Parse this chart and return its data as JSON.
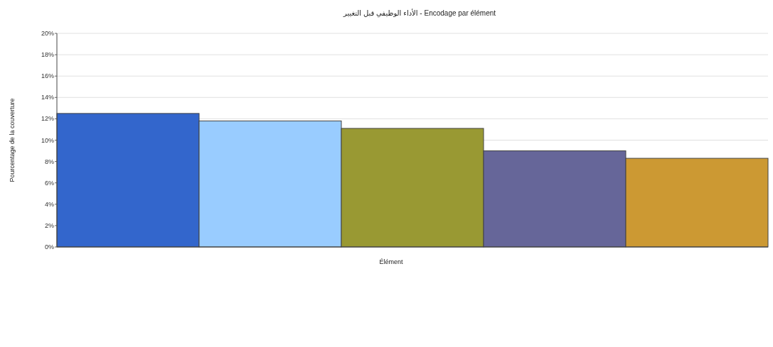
{
  "chart_data": {
    "type": "bar",
    "title": "الأداء الوظيفي قبل التغيير - Encodage par élément",
    "xlabel": "Élément",
    "ylabel": "Pourcentage de la couverture",
    "categories": [
      null,
      null,
      null,
      null,
      null
    ],
    "values": [
      12.5,
      11.8,
      11.1,
      9.0,
      8.3
    ],
    "colors": [
      "#3366cc",
      "#99ccff",
      "#999933",
      "#666699",
      "#cc9933"
    ],
    "ylim": [
      0,
      20
    ],
    "yticks": [
      {
        "value": 0,
        "label": "0%"
      },
      {
        "value": 2,
        "label": "2%"
      },
      {
        "value": 4,
        "label": "4%"
      },
      {
        "value": 6,
        "label": "6%"
      },
      {
        "value": 8,
        "label": "8%"
      },
      {
        "value": 10,
        "label": "10%"
      },
      {
        "value": 12,
        "label": "12%"
      },
      {
        "value": 14,
        "label": "14%"
      },
      {
        "value": 16,
        "label": "16%"
      },
      {
        "value": 18,
        "label": "18%"
      },
      {
        "value": 20,
        "label": "20%"
      }
    ],
    "grid": "y"
  }
}
